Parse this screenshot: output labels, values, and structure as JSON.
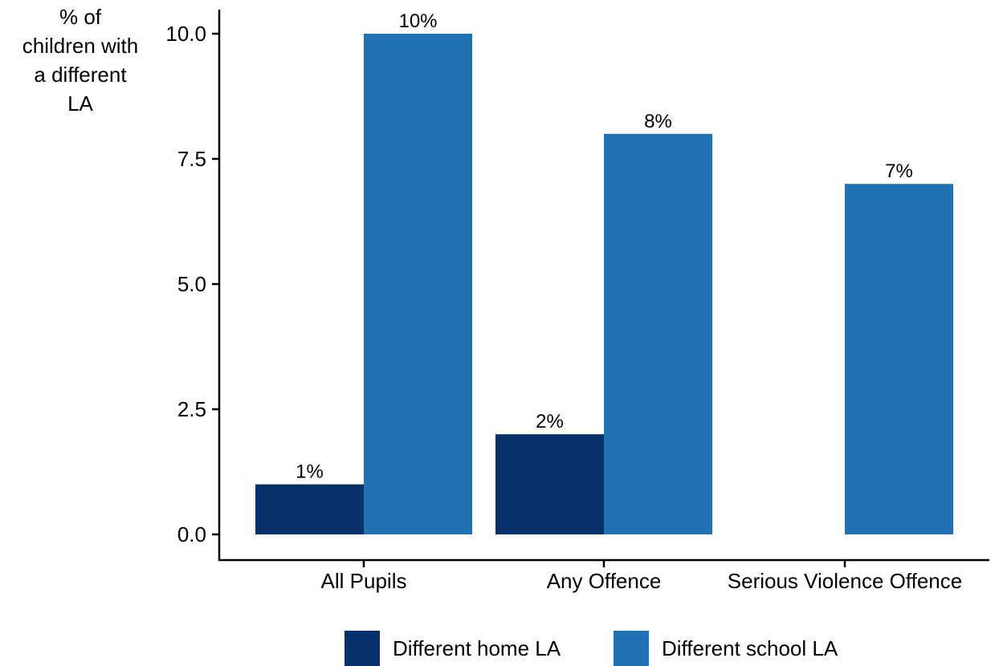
{
  "chart_data": {
    "type": "bar",
    "ylabel_lines": [
      "% of",
      "children with",
      "a different",
      "LA"
    ],
    "categories": [
      "All Pupils",
      "Any Offence",
      "Serious Violence Offence"
    ],
    "series": [
      {
        "name": "Different home LA",
        "color": "#08306b",
        "values": [
          1,
          2,
          null
        ],
        "labels": [
          "1%",
          "2%",
          null
        ]
      },
      {
        "name": "Different school LA",
        "color": "#2171b5",
        "values": [
          10,
          8,
          7
        ],
        "labels": [
          "10%",
          "8%",
          "7%"
        ]
      }
    ],
    "ylim": [
      0,
      10
    ],
    "yticks": [
      0,
      2.5,
      5,
      7.5,
      10
    ],
    "ytick_labels": [
      "0.0",
      "2.5",
      "5.0",
      "7.5",
      "10.0"
    ],
    "grid": false,
    "legend_position": "bottom"
  }
}
